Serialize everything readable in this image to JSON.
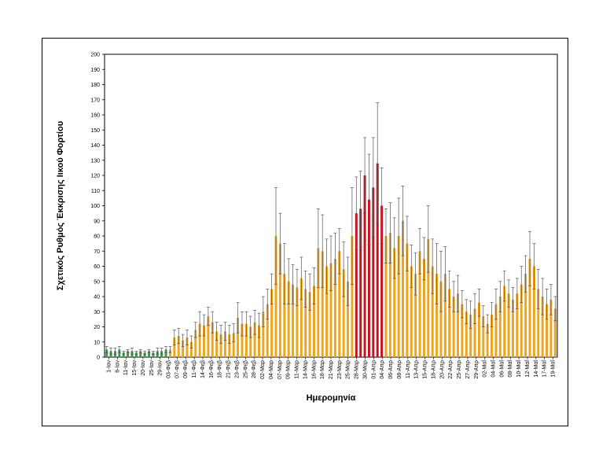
{
  "chart_data": {
    "type": "bar",
    "title": "",
    "ylabel": "Σχετικός Ρυθμός Έκκρισης Ιικού Φορτίου",
    "xlabel": "Ημερομηνία",
    "ylim": [
      0,
      200
    ],
    "ytick_step": 10,
    "grid": false,
    "legend": "none",
    "colors": {
      "green": "#3a9a4a",
      "orange": "#f0a41c",
      "red": "#c8101e",
      "error": "#555555"
    },
    "tick_labels": [
      "1-Ιαν",
      "6-Ιαν",
      "11-Ιαν",
      "15-Ιαν",
      "20-Ιαν",
      "25-Ιαν",
      "29-Ιαν",
      "03-Φεβ",
      "07-Φεβ",
      "09-Φεβ",
      "11-Φεβ",
      "14-Φεβ",
      "16-Φεβ",
      "18-Φεβ",
      "21-Φεβ",
      "23-Φεβ",
      "25-Φεβ",
      "28-Φεβ",
      "02-Μαρ",
      "04-Μαρ",
      "07-Μαρ",
      "09-Μαρ",
      "11-Μαρ",
      "14-Μαρ",
      "16-Μαρ",
      "18-Μαρ",
      "21-Μαρ",
      "23-Μαρ",
      "25-Μαρ",
      "28-Μαρ",
      "30-Μαρ",
      "01-Απρ",
      "04-Απρ",
      "06-Απρ",
      "08-Απρ",
      "11-Απρ",
      "13-Απρ",
      "15-Απρ",
      "18-Απρ",
      "20-Απρ",
      "22-Απρ",
      "25-Απρ",
      "27-Απρ",
      "29-Απρ",
      "02-Μαΐ",
      "04-Μαΐ",
      "06-Μαΐ",
      "08-Μαΐ",
      "10-Μαΐ",
      "12-Μαΐ",
      "14-Μαΐ",
      "17-Μαΐ",
      "19-Μαΐ"
    ],
    "values": [
      5,
      4,
      4,
      5,
      3,
      4,
      4,
      3,
      4,
      3,
      4,
      3,
      4,
      4,
      5,
      5,
      13,
      14,
      11,
      13,
      10,
      18,
      22,
      21,
      27,
      23,
      17,
      15,
      17,
      15,
      16,
      26,
      22,
      22,
      20,
      23,
      21,
      30,
      35,
      45,
      80,
      75,
      55,
      50,
      48,
      46,
      52,
      45,
      43,
      47,
      72,
      70,
      60,
      62,
      65,
      70,
      58,
      50,
      80,
      95,
      98,
      120,
      104,
      112,
      128,
      100,
      80,
      82,
      72,
      80,
      90,
      75,
      60,
      55,
      70,
      65,
      78,
      60,
      55,
      50,
      55,
      45,
      40,
      42,
      35,
      30,
      28,
      32,
      36,
      27,
      22,
      28,
      35,
      40,
      47,
      42,
      38,
      42,
      48,
      55,
      65,
      60,
      45,
      40,
      35,
      38,
      32
    ],
    "errors": [
      2,
      2,
      2,
      2,
      1,
      1,
      2,
      1,
      1,
      1,
      1,
      1,
      2,
      2,
      2,
      2,
      5,
      5,
      4,
      5,
      4,
      5,
      8,
      7,
      6,
      7,
      6,
      6,
      6,
      6,
      6,
      10,
      8,
      8,
      7,
      8,
      8,
      10,
      10,
      10,
      32,
      20,
      20,
      15,
      13,
      12,
      14,
      12,
      12,
      12,
      26,
      24,
      18,
      18,
      17,
      15,
      18,
      16,
      32,
      24,
      25,
      25,
      30,
      33,
      40,
      25,
      18,
      20,
      20,
      25,
      23,
      18,
      14,
      14,
      15,
      14,
      22,
      18,
      20,
      20,
      18,
      12,
      10,
      12,
      9,
      8,
      9,
      10,
      9,
      7,
      6,
      8,
      10,
      10,
      10,
      9,
      8,
      10,
      12,
      12,
      18,
      15,
      13,
      12,
      10,
      10,
      8
    ],
    "red_range": [
      59,
      65
    ],
    "green_until": 15
  }
}
